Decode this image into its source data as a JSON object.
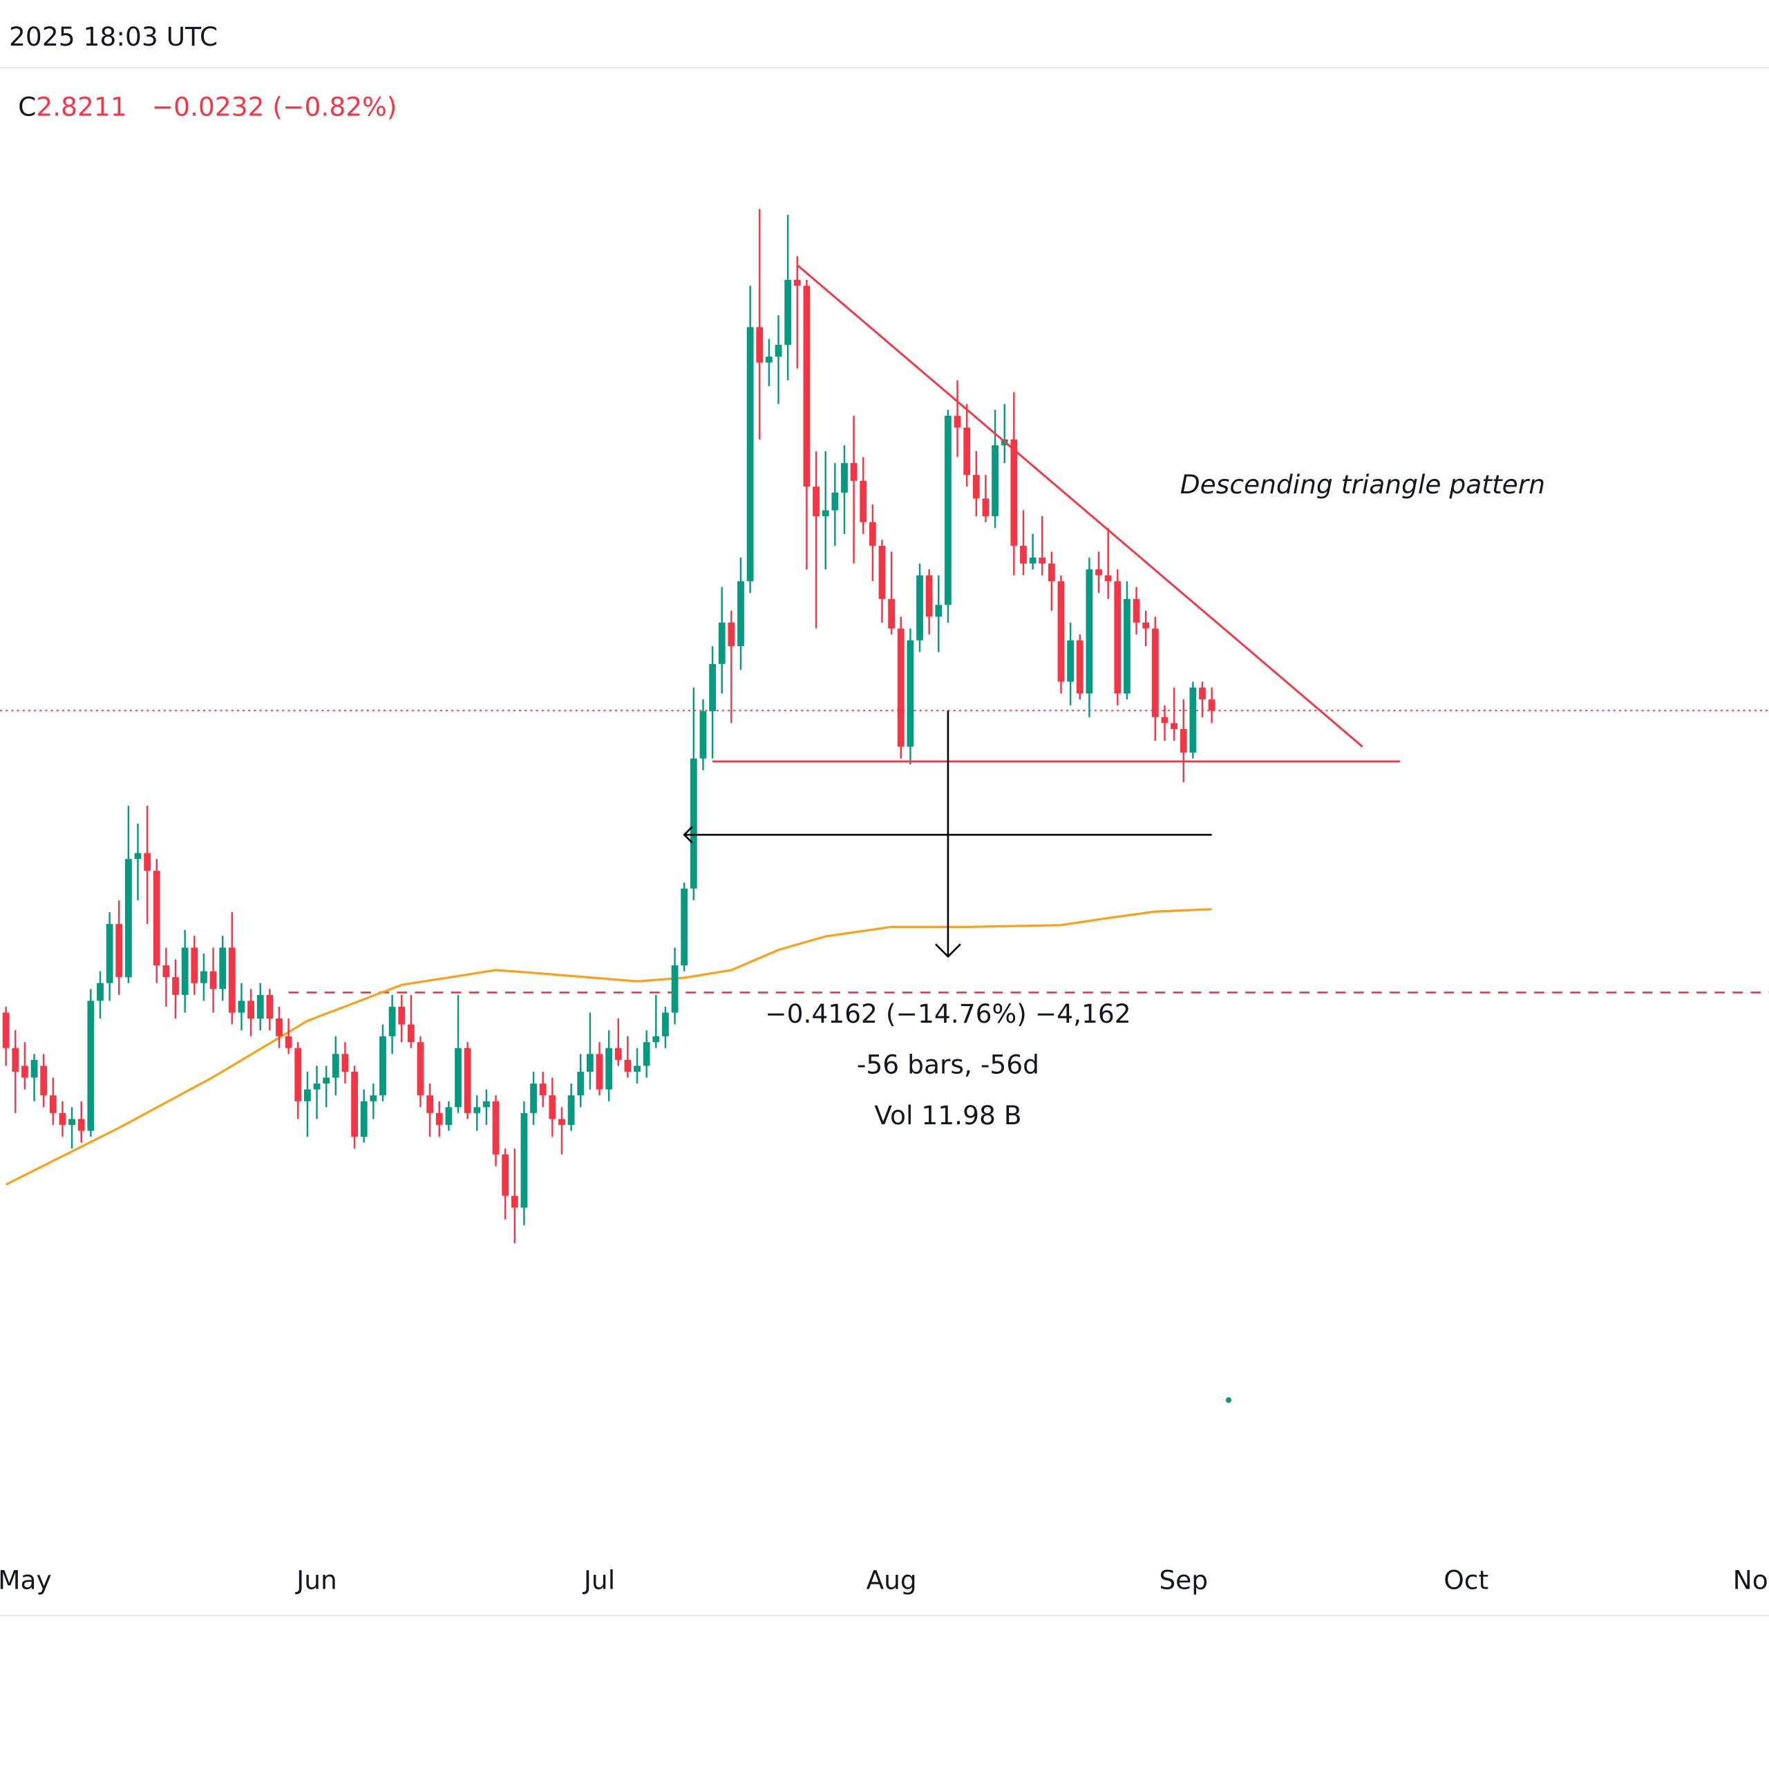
{
  "chart_data": {
    "type": "candlestick",
    "header": "2025 18:03 UTC",
    "legend_prefix": "C",
    "legend_close": "2.8211",
    "legend_change": "−0.0232 (−0.82%)",
    "up_color": "#089981",
    "down_color": "#f23645",
    "xlim": [
      -2.635,
      185.15
    ],
    "ylim": [
      1.389,
      3.909
    ],
    "xticks": [
      {
        "value": 0,
        "label": "May"
      },
      {
        "value": 31,
        "label": "Jun"
      },
      {
        "value": 61,
        "label": "Jul"
      },
      {
        "value": 92,
        "label": "Aug"
      },
      {
        "value": 123,
        "label": "Sep"
      },
      {
        "value": 153,
        "label": "Oct"
      },
      {
        "value": 184,
        "label": "Nov"
      }
    ],
    "x": [
      -2,
      -1,
      0,
      1,
      2,
      3,
      4,
      5,
      6,
      7,
      8,
      9,
      10,
      11,
      12,
      13,
      14,
      15,
      16,
      17,
      18,
      19,
      20,
      21,
      22,
      23,
      24,
      25,
      26,
      27,
      28,
      29,
      30,
      31,
      32,
      33,
      34,
      35,
      36,
      37,
      38,
      39,
      40,
      41,
      42,
      43,
      44,
      45,
      46,
      47,
      48,
      49,
      50,
      51,
      52,
      53,
      54,
      55,
      56,
      57,
      58,
      59,
      60,
      61,
      62,
      63,
      64,
      65,
      66,
      67,
      68,
      69,
      70,
      71,
      72,
      73,
      74,
      75,
      76,
      77,
      78,
      79,
      80,
      81,
      82,
      83,
      84,
      85,
      86,
      87,
      88,
      89,
      90,
      91,
      92,
      93,
      94,
      95,
      96,
      97,
      98,
      99,
      100,
      101,
      102,
      103,
      104,
      105,
      106,
      107,
      108,
      109,
      110,
      111,
      112,
      113,
      114,
      115,
      116,
      117,
      118,
      119,
      120,
      121,
      122,
      123,
      124,
      125,
      126
    ],
    "ohlc": [
      [
        2.31,
        2.32,
        2.22,
        2.25
      ],
      [
        2.25,
        2.28,
        2.14,
        2.21
      ],
      [
        2.22,
        2.26,
        2.18,
        2.2
      ],
      [
        2.2,
        2.24,
        2.16,
        2.23
      ],
      [
        2.22,
        2.24,
        2.15,
        2.17
      ],
      [
        2.17,
        2.2,
        2.12,
        2.14
      ],
      [
        2.14,
        2.16,
        2.1,
        2.12
      ],
      [
        2.12,
        2.15,
        2.08,
        2.13
      ],
      [
        2.13,
        2.16,
        2.09,
        2.11
      ],
      [
        2.11,
        2.35,
        2.1,
        2.33
      ],
      [
        2.33,
        2.38,
        2.3,
        2.36
      ],
      [
        2.36,
        2.48,
        2.33,
        2.46
      ],
      [
        2.46,
        2.5,
        2.34,
        2.37
      ],
      [
        2.37,
        2.66,
        2.36,
        2.57
      ],
      [
        2.57,
        2.63,
        2.5,
        2.58
      ],
      [
        2.58,
        2.66,
        2.46,
        2.55
      ],
      [
        2.55,
        2.57,
        2.36,
        2.39
      ],
      [
        2.39,
        2.42,
        2.32,
        2.37
      ],
      [
        2.37,
        2.4,
        2.3,
        2.34
      ],
      [
        2.34,
        2.45,
        2.31,
        2.42
      ],
      [
        2.42,
        2.44,
        2.34,
        2.36
      ],
      [
        2.36,
        2.41,
        2.33,
        2.38
      ],
      [
        2.38,
        2.42,
        2.31,
        2.35
      ],
      [
        2.35,
        2.44,
        2.33,
        2.42
      ],
      [
        2.42,
        2.48,
        2.29,
        2.31
      ],
      [
        2.31,
        2.36,
        2.28,
        2.33
      ],
      [
        2.33,
        2.35,
        2.27,
        2.3
      ],
      [
        2.3,
        2.36,
        2.28,
        2.34
      ],
      [
        2.34,
        2.35,
        2.28,
        2.3
      ],
      [
        2.3,
        2.32,
        2.25,
        2.27
      ],
      [
        2.27,
        2.3,
        2.24,
        2.25
      ],
      [
        2.25,
        2.26,
        2.13,
        2.16
      ],
      [
        2.16,
        2.21,
        2.1,
        2.18
      ],
      [
        2.18,
        2.22,
        2.13,
        2.19
      ],
      [
        2.19,
        2.22,
        2.15,
        2.2
      ],
      [
        2.2,
        2.27,
        2.17,
        2.24
      ],
      [
        2.24,
        2.26,
        2.19,
        2.21
      ],
      [
        2.21,
        2.22,
        2.08,
        2.1
      ],
      [
        2.1,
        2.18,
        2.09,
        2.16
      ],
      [
        2.16,
        2.19,
        2.13,
        2.17
      ],
      [
        2.17,
        2.29,
        2.16,
        2.27
      ],
      [
        2.27,
        2.34,
        2.24,
        2.32
      ],
      [
        2.32,
        2.34,
        2.26,
        2.29
      ],
      [
        2.29,
        2.34,
        2.25,
        2.26
      ],
      [
        2.26,
        2.27,
        2.15,
        2.17
      ],
      [
        2.17,
        2.19,
        2.1,
        2.14
      ],
      [
        2.14,
        2.16,
        2.1,
        2.12
      ],
      [
        2.12,
        2.16,
        2.11,
        2.15
      ],
      [
        2.15,
        2.34,
        2.14,
        2.25
      ],
      [
        2.25,
        2.26,
        2.13,
        2.14
      ],
      [
        2.14,
        2.17,
        2.11,
        2.15
      ],
      [
        2.15,
        2.18,
        2.12,
        2.16
      ],
      [
        2.16,
        2.17,
        2.05,
        2.07
      ],
      [
        2.07,
        2.08,
        1.96,
        2.0
      ],
      [
        2.0,
        2.08,
        1.92,
        1.98
      ],
      [
        1.98,
        2.16,
        1.95,
        2.14
      ],
      [
        2.14,
        2.21,
        2.12,
        2.19
      ],
      [
        2.19,
        2.21,
        2.15,
        2.17
      ],
      [
        2.17,
        2.2,
        2.1,
        2.13
      ],
      [
        2.13,
        2.15,
        2.07,
        2.12
      ],
      [
        2.12,
        2.19,
        2.11,
        2.17
      ],
      [
        2.17,
        2.24,
        2.15,
        2.21
      ],
      [
        2.21,
        2.31,
        2.18,
        2.24
      ],
      [
        2.24,
        2.26,
        2.17,
        2.18
      ],
      [
        2.18,
        2.28,
        2.16,
        2.25
      ],
      [
        2.25,
        2.3,
        2.22,
        2.23
      ],
      [
        2.23,
        2.27,
        2.2,
        2.21
      ],
      [
        2.21,
        2.25,
        2.19,
        2.22
      ],
      [
        2.22,
        2.28,
        2.2,
        2.26
      ],
      [
        2.26,
        2.34,
        2.25,
        2.27
      ],
      [
        2.27,
        2.32,
        2.25,
        2.31
      ],
      [
        2.31,
        2.42,
        2.29,
        2.39
      ],
      [
        2.39,
        2.53,
        2.38,
        2.52
      ],
      [
        2.52,
        2.86,
        2.5,
        2.74
      ],
      [
        2.74,
        2.84,
        2.72,
        2.82
      ],
      [
        2.82,
        2.93,
        2.74,
        2.9
      ],
      [
        2.9,
        3.03,
        2.85,
        2.97
      ],
      [
        2.97,
        2.99,
        2.8,
        2.93
      ],
      [
        2.93,
        3.08,
        2.89,
        3.04
      ],
      [
        3.04,
        3.54,
        3.02,
        3.47
      ],
      [
        3.47,
        3.67,
        3.28,
        3.41
      ],
      [
        3.41,
        3.45,
        3.37,
        3.42
      ],
      [
        3.42,
        3.49,
        3.34,
        3.44
      ],
      [
        3.44,
        3.66,
        3.38,
        3.55
      ],
      [
        3.55,
        3.59,
        3.4,
        3.54
      ],
      [
        3.54,
        3.55,
        3.06,
        3.2
      ],
      [
        3.2,
        3.26,
        2.96,
        3.15
      ],
      [
        3.15,
        3.26,
        3.06,
        3.16
      ],
      [
        3.16,
        3.24,
        3.1,
        3.19
      ],
      [
        3.19,
        3.27,
        3.12,
        3.24
      ],
      [
        3.24,
        3.32,
        3.07,
        3.21
      ],
      [
        3.21,
        3.25,
        3.12,
        3.14
      ],
      [
        3.14,
        3.17,
        3.04,
        3.1
      ],
      [
        3.1,
        3.11,
        2.97,
        3.01
      ],
      [
        3.01,
        3.09,
        2.95,
        2.96
      ],
      [
        2.96,
        2.98,
        2.74,
        2.76
      ],
      [
        2.76,
        2.96,
        2.73,
        2.94
      ],
      [
        2.94,
        3.07,
        2.92,
        3.05
      ],
      [
        3.05,
        3.06,
        2.95,
        2.98
      ],
      [
        2.98,
        3.05,
        2.92,
        3.0
      ],
      [
        3.0,
        3.33,
        2.97,
        3.32
      ],
      [
        3.32,
        3.38,
        3.25,
        3.3
      ],
      [
        3.3,
        3.34,
        3.2,
        3.22
      ],
      [
        3.22,
        3.26,
        3.15,
        3.18
      ],
      [
        3.18,
        3.22,
        3.14,
        3.15
      ],
      [
        3.15,
        3.33,
        3.13,
        3.27
      ],
      [
        3.27,
        3.34,
        3.24,
        3.28
      ],
      [
        3.28,
        3.36,
        3.05,
        3.1
      ],
      [
        3.1,
        3.16,
        3.05,
        3.07
      ],
      [
        3.07,
        3.12,
        3.06,
        3.08
      ],
      [
        3.08,
        3.15,
        3.05,
        3.07
      ],
      [
        3.07,
        3.09,
        2.99,
        3.04
      ],
      [
        3.04,
        3.05,
        2.85,
        2.87
      ],
      [
        2.87,
        2.97,
        2.83,
        2.94
      ],
      [
        2.94,
        2.95,
        2.84,
        2.85
      ],
      [
        2.85,
        3.08,
        2.81,
        3.06
      ],
      [
        3.06,
        3.09,
        3.02,
        3.05
      ],
      [
        3.05,
        3.13,
        3.01,
        3.04
      ],
      [
        3.04,
        3.06,
        2.83,
        2.85
      ],
      [
        2.85,
        3.04,
        2.84,
        3.01
      ],
      [
        3.01,
        3.03,
        2.95,
        2.97
      ],
      [
        2.97,
        2.99,
        2.93,
        2.96
      ],
      [
        2.96,
        2.98,
        2.77,
        2.81
      ],
      [
        2.81,
        2.83,
        2.77,
        2.8
      ],
      [
        2.8,
        2.86,
        2.77,
        2.79
      ],
      [
        2.79,
        2.84,
        2.7,
        2.75
      ],
      [
        2.75,
        2.87,
        2.74,
        2.86
      ],
      [
        2.86,
        2.87,
        2.81,
        2.84
      ],
      [
        2.84,
        2.86,
        2.8,
        2.8211
      ]
    ],
    "ma": {
      "color": "#f7a21b",
      "x": [
        -2,
        10,
        20,
        30,
        40,
        50,
        55,
        65,
        70,
        75,
        80,
        85,
        92,
        100,
        110,
        115,
        120,
        126
      ],
      "values": [
        2.019,
        2.115,
        2.201,
        2.296,
        2.357,
        2.382,
        2.376,
        2.363,
        2.369,
        2.382,
        2.416,
        2.439,
        2.455,
        2.455,
        2.458,
        2.47,
        2.481,
        2.485
      ]
    },
    "pattern_color": "#f23645",
    "trendlines": [
      {
        "x": [
          82,
          142
        ],
        "y": [
          3.575,
          2.76
        ]
      },
      {
        "x": [
          73,
          146
        ],
        "y": [
          2.735,
          2.735
        ]
      }
    ],
    "levels": [
      {
        "value": 2.8211,
        "style": "dotted"
      },
      {
        "value": 2.344,
        "style": "dashed",
        "from": 28
      }
    ],
    "annotation": "Descending triangle pattern",
    "measure": {
      "x": [
        70,
        126
      ],
      "level": 2.611,
      "arrow_x": 98,
      "price": [
        2.8211,
        2.4049
      ],
      "labels": [
        "−0.4162 (−14.76%) −4,162",
        "-56 bars, -56d",
        "Vol 11.98 B"
      ]
    }
  }
}
